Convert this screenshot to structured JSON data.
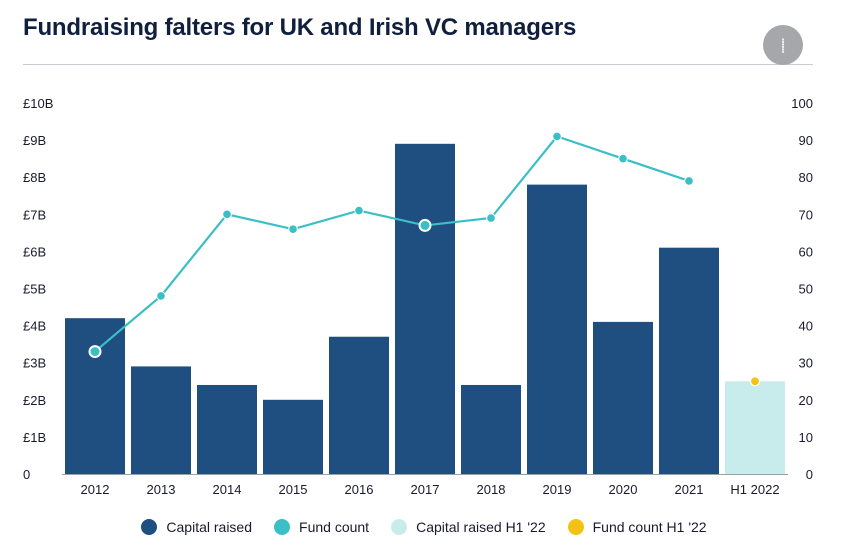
{
  "header": {
    "title": "Fundraising falters for UK and Irish VC managers",
    "logo_icon": "publisher-logo-icon",
    "logo_glyph": "⸽"
  },
  "chart_data": {
    "type": "bar",
    "title": "Fundraising falters for UK and Irish VC managers",
    "categories": [
      "2012",
      "2013",
      "2014",
      "2015",
      "2016",
      "2017",
      "2018",
      "2019",
      "2020",
      "2021",
      "H1 2022"
    ],
    "series": [
      {
        "name": "Capital raised",
        "kind": "bar",
        "axis": "left",
        "color": "#1f4e80",
        "values": [
          4.2,
          2.9,
          2.4,
          2.0,
          3.7,
          8.9,
          2.4,
          7.8,
          4.1,
          6.1,
          null
        ]
      },
      {
        "name": "Fund count",
        "kind": "line",
        "axis": "right",
        "color": "#3bbfc6",
        "values": [
          33,
          48,
          70,
          66,
          71,
          67,
          69,
          91,
          85,
          79,
          null
        ]
      },
      {
        "name": "Capital raised H1 '22",
        "kind": "bar",
        "axis": "left",
        "color": "#c8eceb",
        "values": [
          null,
          null,
          null,
          null,
          null,
          null,
          null,
          null,
          null,
          null,
          2.5
        ]
      },
      {
        "name": "Fund count H1 '22",
        "kind": "point",
        "axis": "right",
        "color": "#f2c314",
        "values": [
          null,
          null,
          null,
          null,
          null,
          null,
          null,
          null,
          null,
          null,
          25
        ]
      }
    ],
    "highlighted_points": [
      "2012",
      "2017"
    ],
    "left_axis": {
      "ylim": [
        0,
        10
      ],
      "ticks": [
        "0",
        "£1B",
        "£2B",
        "£3B",
        "£4B",
        "£5B",
        "£6B",
        "£7B",
        "£8B",
        "£9B",
        "£10B"
      ]
    },
    "right_axis": {
      "ylim": [
        0,
        100
      ],
      "ticks": [
        "0",
        "10",
        "20",
        "30",
        "40",
        "50",
        "60",
        "70",
        "80",
        "90",
        "100"
      ]
    },
    "grid": false,
    "legend_position": "bottom-center"
  }
}
